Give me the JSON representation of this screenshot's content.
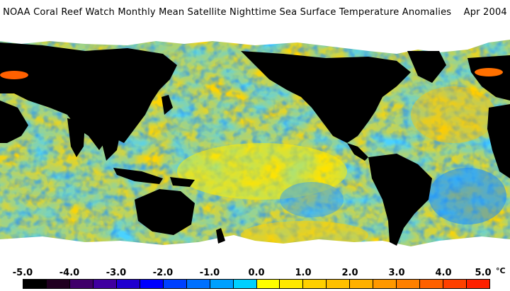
{
  "title": "NOAA Coral Reef Watch Monthly Mean Satellite Nighttime Sea Surface Temperature Anomalies    Apr 2004",
  "map": {
    "ocean_palette": [
      "#1aa0ff",
      "#32c8ff",
      "#46d8ff",
      "#ffff00",
      "#ffd800",
      "#ffc000",
      "#ffb000"
    ],
    "land_color": "#000000",
    "ice_color": "#ffffff"
  },
  "legend": {
    "unit": "°C",
    "tick_labels": [
      "-5.0",
      "-4.0",
      "-3.0",
      "-2.0",
      "-1.0",
      "0.0",
      "1.0",
      "2.0",
      "3.0",
      "4.0",
      "5.0"
    ],
    "colors": [
      "#000000",
      "#200020",
      "#40006a",
      "#4000a0",
      "#2000d0",
      "#0000ff",
      "#0040ff",
      "#0070ff",
      "#00a0ff",
      "#00d0ff",
      "#ffff00",
      "#ffe800",
      "#ffd000",
      "#ffc000",
      "#ffb000",
      "#ff9800",
      "#ff8000",
      "#ff6000",
      "#ff4000",
      "#ff2000"
    ]
  }
}
